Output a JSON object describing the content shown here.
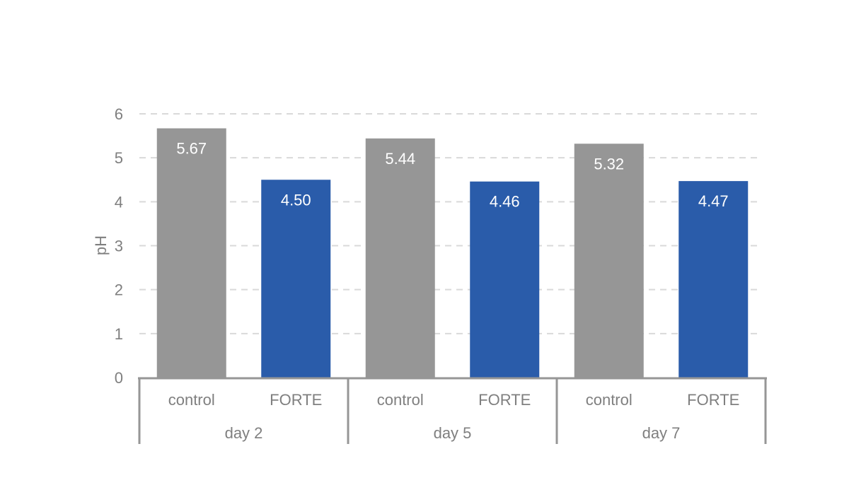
{
  "chart_data": {
    "type": "bar",
    "ylabel": "pH",
    "ylim": [
      0,
      6
    ],
    "yticks": [
      0,
      1,
      2,
      3,
      4,
      5,
      6
    ],
    "grid": true,
    "groups": [
      {
        "label": "day 2",
        "bars": [
          {
            "category": "control",
            "value": 5.67,
            "label": "5.67",
            "color": "#969696"
          },
          {
            "category": "FORTE",
            "value": 4.5,
            "label": "4.50",
            "color": "#2a5caa"
          }
        ]
      },
      {
        "label": "day 5",
        "bars": [
          {
            "category": "control",
            "value": 5.44,
            "label": "5.44",
            "color": "#969696"
          },
          {
            "category": "FORTE",
            "value": 4.46,
            "label": "4.46",
            "color": "#2a5caa"
          }
        ]
      },
      {
        "label": "day 7",
        "bars": [
          {
            "category": "control",
            "value": 5.32,
            "label": "5.32",
            "color": "#969696"
          },
          {
            "category": "FORTE",
            "value": 4.47,
            "label": "4.47",
            "color": "#2a5caa"
          }
        ]
      }
    ]
  }
}
